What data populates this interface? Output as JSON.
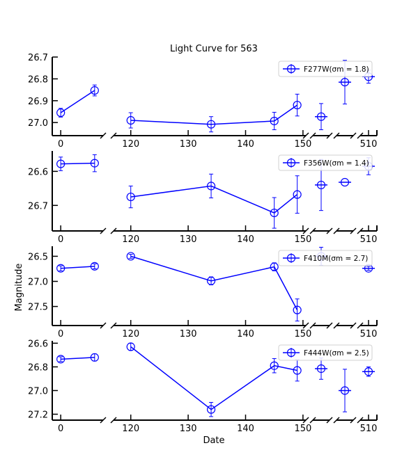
{
  "chart_data": {
    "type": "line",
    "title": "Light Curve for 563",
    "xlabel": "Date",
    "ylabel": "Magnitude",
    "invert_y": true,
    "broken_x_axis": true,
    "grid": false,
    "legend_placement": "top-right",
    "series_color": "#0000ff",
    "panels": [
      {
        "legend": "F277W(σm = 1.8)",
        "ylim": [
          26.7,
          27.06
        ],
        "yticks": [
          26.7,
          26.8,
          26.9,
          27.0
        ],
        "ytick_labels": [
          "26.7",
          "26.8",
          "26.9",
          "27.0"
        ],
        "points": [
          {
            "x": 0,
            "y": 26.955,
            "err": 0.02,
            "seg": 0
          },
          {
            "x": 6,
            "y": 26.853,
            "err": 0.025,
            "seg": 0
          },
          {
            "x": 120,
            "y": 26.99,
            "err": 0.035,
            "seg": 1
          },
          {
            "x": 134,
            "y": 27.008,
            "err": 0.035,
            "seg": 1
          },
          {
            "x": 145,
            "y": 26.993,
            "err": 0.04,
            "seg": 1
          },
          {
            "x": 149,
            "y": 26.92,
            "err": 0.05,
            "seg": 1
          },
          {
            "x": 152,
            "y": 26.973,
            "err": 0.06,
            "seg": 2
          },
          {
            "x": 153,
            "y": 26.815,
            "err": 0.1,
            "seg": 3
          },
          {
            "x": 510,
            "y": 26.79,
            "err": 0.03,
            "seg": 4
          }
        ]
      },
      {
        "legend": "F356W(σm = 1.4)",
        "ylim": [
          26.54,
          26.775
        ],
        "yticks": [
          26.6,
          26.7
        ],
        "ytick_labels": [
          "26.6",
          "26.7"
        ],
        "points": [
          {
            "x": 0,
            "y": 26.578,
            "err": 0.02,
            "seg": 0
          },
          {
            "x": 6,
            "y": 26.576,
            "err": 0.025,
            "seg": 0
          },
          {
            "x": 120,
            "y": 26.675,
            "err": 0.032,
            "seg": 1
          },
          {
            "x": 134,
            "y": 26.643,
            "err": 0.035,
            "seg": 1
          },
          {
            "x": 145,
            "y": 26.722,
            "err": 0.045,
            "seg": 1
          },
          {
            "x": 149,
            "y": 26.668,
            "err": 0.055,
            "seg": 1
          },
          {
            "x": 152,
            "y": 26.64,
            "err": 0.075,
            "seg": 2
          },
          {
            "x": 153,
            "y": 26.632,
            "err": 0.0,
            "seg": 3
          },
          {
            "x": 510,
            "y": 26.585,
            "err": 0.025,
            "seg": 4
          }
        ]
      },
      {
        "legend": "F410M(σm = 2.7)",
        "ylim": [
          26.3,
          27.88
        ],
        "yticks": [
          26.5,
          27.0,
          27.5
        ],
        "ytick_labels": [
          "26.5",
          "27.0",
          "27.5"
        ],
        "points": [
          {
            "x": 0,
            "y": 26.74,
            "err": 0.05,
            "seg": 0
          },
          {
            "x": 6,
            "y": 26.7,
            "err": 0.05,
            "seg": 0
          },
          {
            "x": 120,
            "y": 26.5,
            "err": 0.04,
            "seg": 1
          },
          {
            "x": 134,
            "y": 26.99,
            "err": 0.08,
            "seg": 1
          },
          {
            "x": 145,
            "y": 26.71,
            "err": 0.08,
            "seg": 1
          },
          {
            "x": 149,
            "y": 27.57,
            "err": 0.22,
            "seg": 1
          },
          {
            "x": 152,
            "y": 26.5,
            "err": 0.18,
            "seg": 2
          },
          {
            "x": 510,
            "y": 26.74,
            "err": 0.04,
            "seg": 4
          }
        ]
      },
      {
        "legend": "F444W(σm = 2.5)",
        "ylim": [
          26.58,
          27.25
        ],
        "yticks": [
          26.6,
          26.8,
          27.0,
          27.2
        ],
        "ytick_labels": [
          "26.6",
          "26.8",
          "27.0",
          "27.2"
        ],
        "points": [
          {
            "x": 0,
            "y": 26.735,
            "err": 0.02,
            "seg": 0
          },
          {
            "x": 6,
            "y": 26.72,
            "err": 0.03,
            "seg": 0
          },
          {
            "x": 120,
            "y": 26.63,
            "err": 0.03,
            "seg": 1
          },
          {
            "x": 134,
            "y": 27.16,
            "err": 0.06,
            "seg": 1
          },
          {
            "x": 145,
            "y": 26.79,
            "err": 0.06,
            "seg": 1
          },
          {
            "x": 149,
            "y": 26.83,
            "err": 0.09,
            "seg": 1
          },
          {
            "x": 152,
            "y": 26.815,
            "err": 0.09,
            "seg": 2
          },
          {
            "x": 153,
            "y": 27.0,
            "err": 0.18,
            "seg": 3
          },
          {
            "x": 510,
            "y": 26.84,
            "err": 0.04,
            "seg": 4
          }
        ]
      }
    ],
    "x_segments": [
      {
        "xlim": [
          -1.5,
          7.5
        ],
        "ticks": [
          0
        ],
        "tick_labels": [
          "0"
        ]
      },
      {
        "xlim": [
          117,
          150.5
        ],
        "ticks": [
          120,
          130,
          140,
          150
        ],
        "tick_labels": [
          "120",
          "130",
          "140",
          "150"
        ]
      },
      {
        "xlim": [
          151.3,
          152.7
        ],
        "ticks": [],
        "tick_labels": []
      },
      {
        "xlim": [
          152.3,
          153.7
        ],
        "ticks": [],
        "tick_labels": []
      },
      {
        "xlim": [
          509.2,
          510.8
        ],
        "ticks": [
          510
        ],
        "tick_labels": [
          "510"
        ]
      }
    ]
  }
}
